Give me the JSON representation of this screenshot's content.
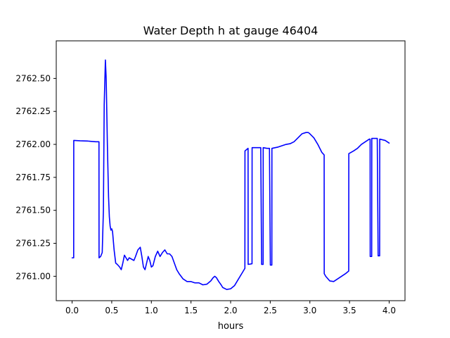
{
  "chart_data": {
    "type": "line",
    "title": "Water Depth h at gauge 46404",
    "xlabel": "hours",
    "ylabel": "",
    "xlim": [
      -0.2,
      4.2
    ],
    "ylim": [
      2760.815,
      2762.785
    ],
    "xticks": [
      0.0,
      0.5,
      1.0,
      1.5,
      2.0,
      2.5,
      3.0,
      3.5,
      4.0
    ],
    "xtick_labels": [
      "0.0",
      "0.5",
      "1.0",
      "1.5",
      "2.0",
      "2.5",
      "3.0",
      "3.5",
      "4.0"
    ],
    "yticks": [
      2761.0,
      2761.25,
      2761.5,
      2761.75,
      2762.0,
      2762.25,
      2762.5
    ],
    "ytick_labels": [
      "2761.00",
      "2761.25",
      "2761.50",
      "2761.75",
      "2762.00",
      "2762.25",
      "2762.50"
    ],
    "grid": false,
    "series": [
      {
        "color": "#0000ff",
        "x": [
          0.0,
          0.02,
          0.021,
          0.1,
          0.2,
          0.3,
          0.339,
          0.34,
          0.36,
          0.38,
          0.395,
          0.405,
          0.42,
          0.43,
          0.445,
          0.46,
          0.47,
          0.48,
          0.49,
          0.5,
          0.51,
          0.53,
          0.55,
          0.57,
          0.6,
          0.62,
          0.64,
          0.66,
          0.68,
          0.7,
          0.72,
          0.75,
          0.78,
          0.8,
          0.83,
          0.86,
          0.88,
          0.9,
          0.92,
          0.94,
          0.96,
          0.98,
          1.0,
          1.02,
          1.05,
          1.08,
          1.11,
          1.14,
          1.17,
          1.2,
          1.23,
          1.26,
          1.29,
          1.32,
          1.35,
          1.4,
          1.45,
          1.5,
          1.55,
          1.6,
          1.65,
          1.7,
          1.75,
          1.78,
          1.8,
          1.82,
          1.85,
          1.88,
          1.9,
          1.95,
          2.0,
          2.05,
          2.1,
          2.15,
          2.18,
          2.181,
          2.22,
          2.221,
          2.27,
          2.271,
          2.36,
          2.38,
          2.391,
          2.41,
          2.411,
          2.46,
          2.49,
          2.501,
          2.52,
          2.521,
          2.6,
          2.65,
          2.7,
          2.75,
          2.8,
          2.85,
          2.9,
          2.95,
          2.98,
          3.0,
          3.05,
          3.1,
          3.15,
          3.18,
          3.181,
          3.2,
          3.25,
          3.3,
          3.35,
          3.4,
          3.45,
          3.49,
          3.491,
          3.55,
          3.6,
          3.65,
          3.7,
          3.75,
          3.76,
          3.761,
          3.78,
          3.781,
          3.8,
          3.85,
          3.861,
          3.88,
          3.881,
          3.95,
          4.0
        ],
        "y": [
          2761.14,
          2761.14,
          2762.03,
          2762.027,
          2762.025,
          2762.02,
          2762.02,
          2761.14,
          2761.15,
          2761.18,
          2761.5,
          2762.3,
          2762.64,
          2762.5,
          2762.0,
          2761.6,
          2761.45,
          2761.38,
          2761.35,
          2761.36,
          2761.34,
          2761.2,
          2761.1,
          2761.09,
          2761.07,
          2761.05,
          2761.1,
          2761.16,
          2761.14,
          2761.12,
          2761.14,
          2761.13,
          2761.12,
          2761.15,
          2761.2,
          2761.22,
          2761.15,
          2761.07,
          2761.05,
          2761.1,
          2761.15,
          2761.12,
          2761.07,
          2761.08,
          2761.15,
          2761.19,
          2761.15,
          2761.18,
          2761.2,
          2761.17,
          2761.17,
          2761.15,
          2761.1,
          2761.05,
          2761.02,
          2760.98,
          2760.96,
          2760.96,
          2760.95,
          2760.95,
          2760.935,
          2760.94,
          2760.965,
          2760.99,
          2761.0,
          2760.99,
          2760.96,
          2760.935,
          2760.915,
          2760.9,
          2760.905,
          2760.93,
          2760.98,
          2761.03,
          2761.06,
          2761.95,
          2761.97,
          2761.09,
          2761.095,
          2761.975,
          2761.975,
          2761.975,
          2761.09,
          2761.09,
          2761.975,
          2761.97,
          2761.97,
          2761.085,
          2761.085,
          2761.97,
          2761.98,
          2761.99,
          2762.0,
          2762.005,
          2762.02,
          2762.05,
          2762.08,
          2762.09,
          2762.09,
          2762.08,
          2762.05,
          2762.0,
          2761.94,
          2761.92,
          2761.02,
          2761.0,
          2760.965,
          2760.96,
          2760.98,
          2761.0,
          2761.02,
          2761.04,
          2761.93,
          2761.95,
          2761.97,
          2762.0,
          2762.02,
          2762.04,
          2762.04,
          2761.15,
          2761.15,
          2762.045,
          2762.045,
          2762.045,
          2761.155,
          2761.155,
          2762.04,
          2762.03,
          2762.01
        ]
      }
    ]
  }
}
